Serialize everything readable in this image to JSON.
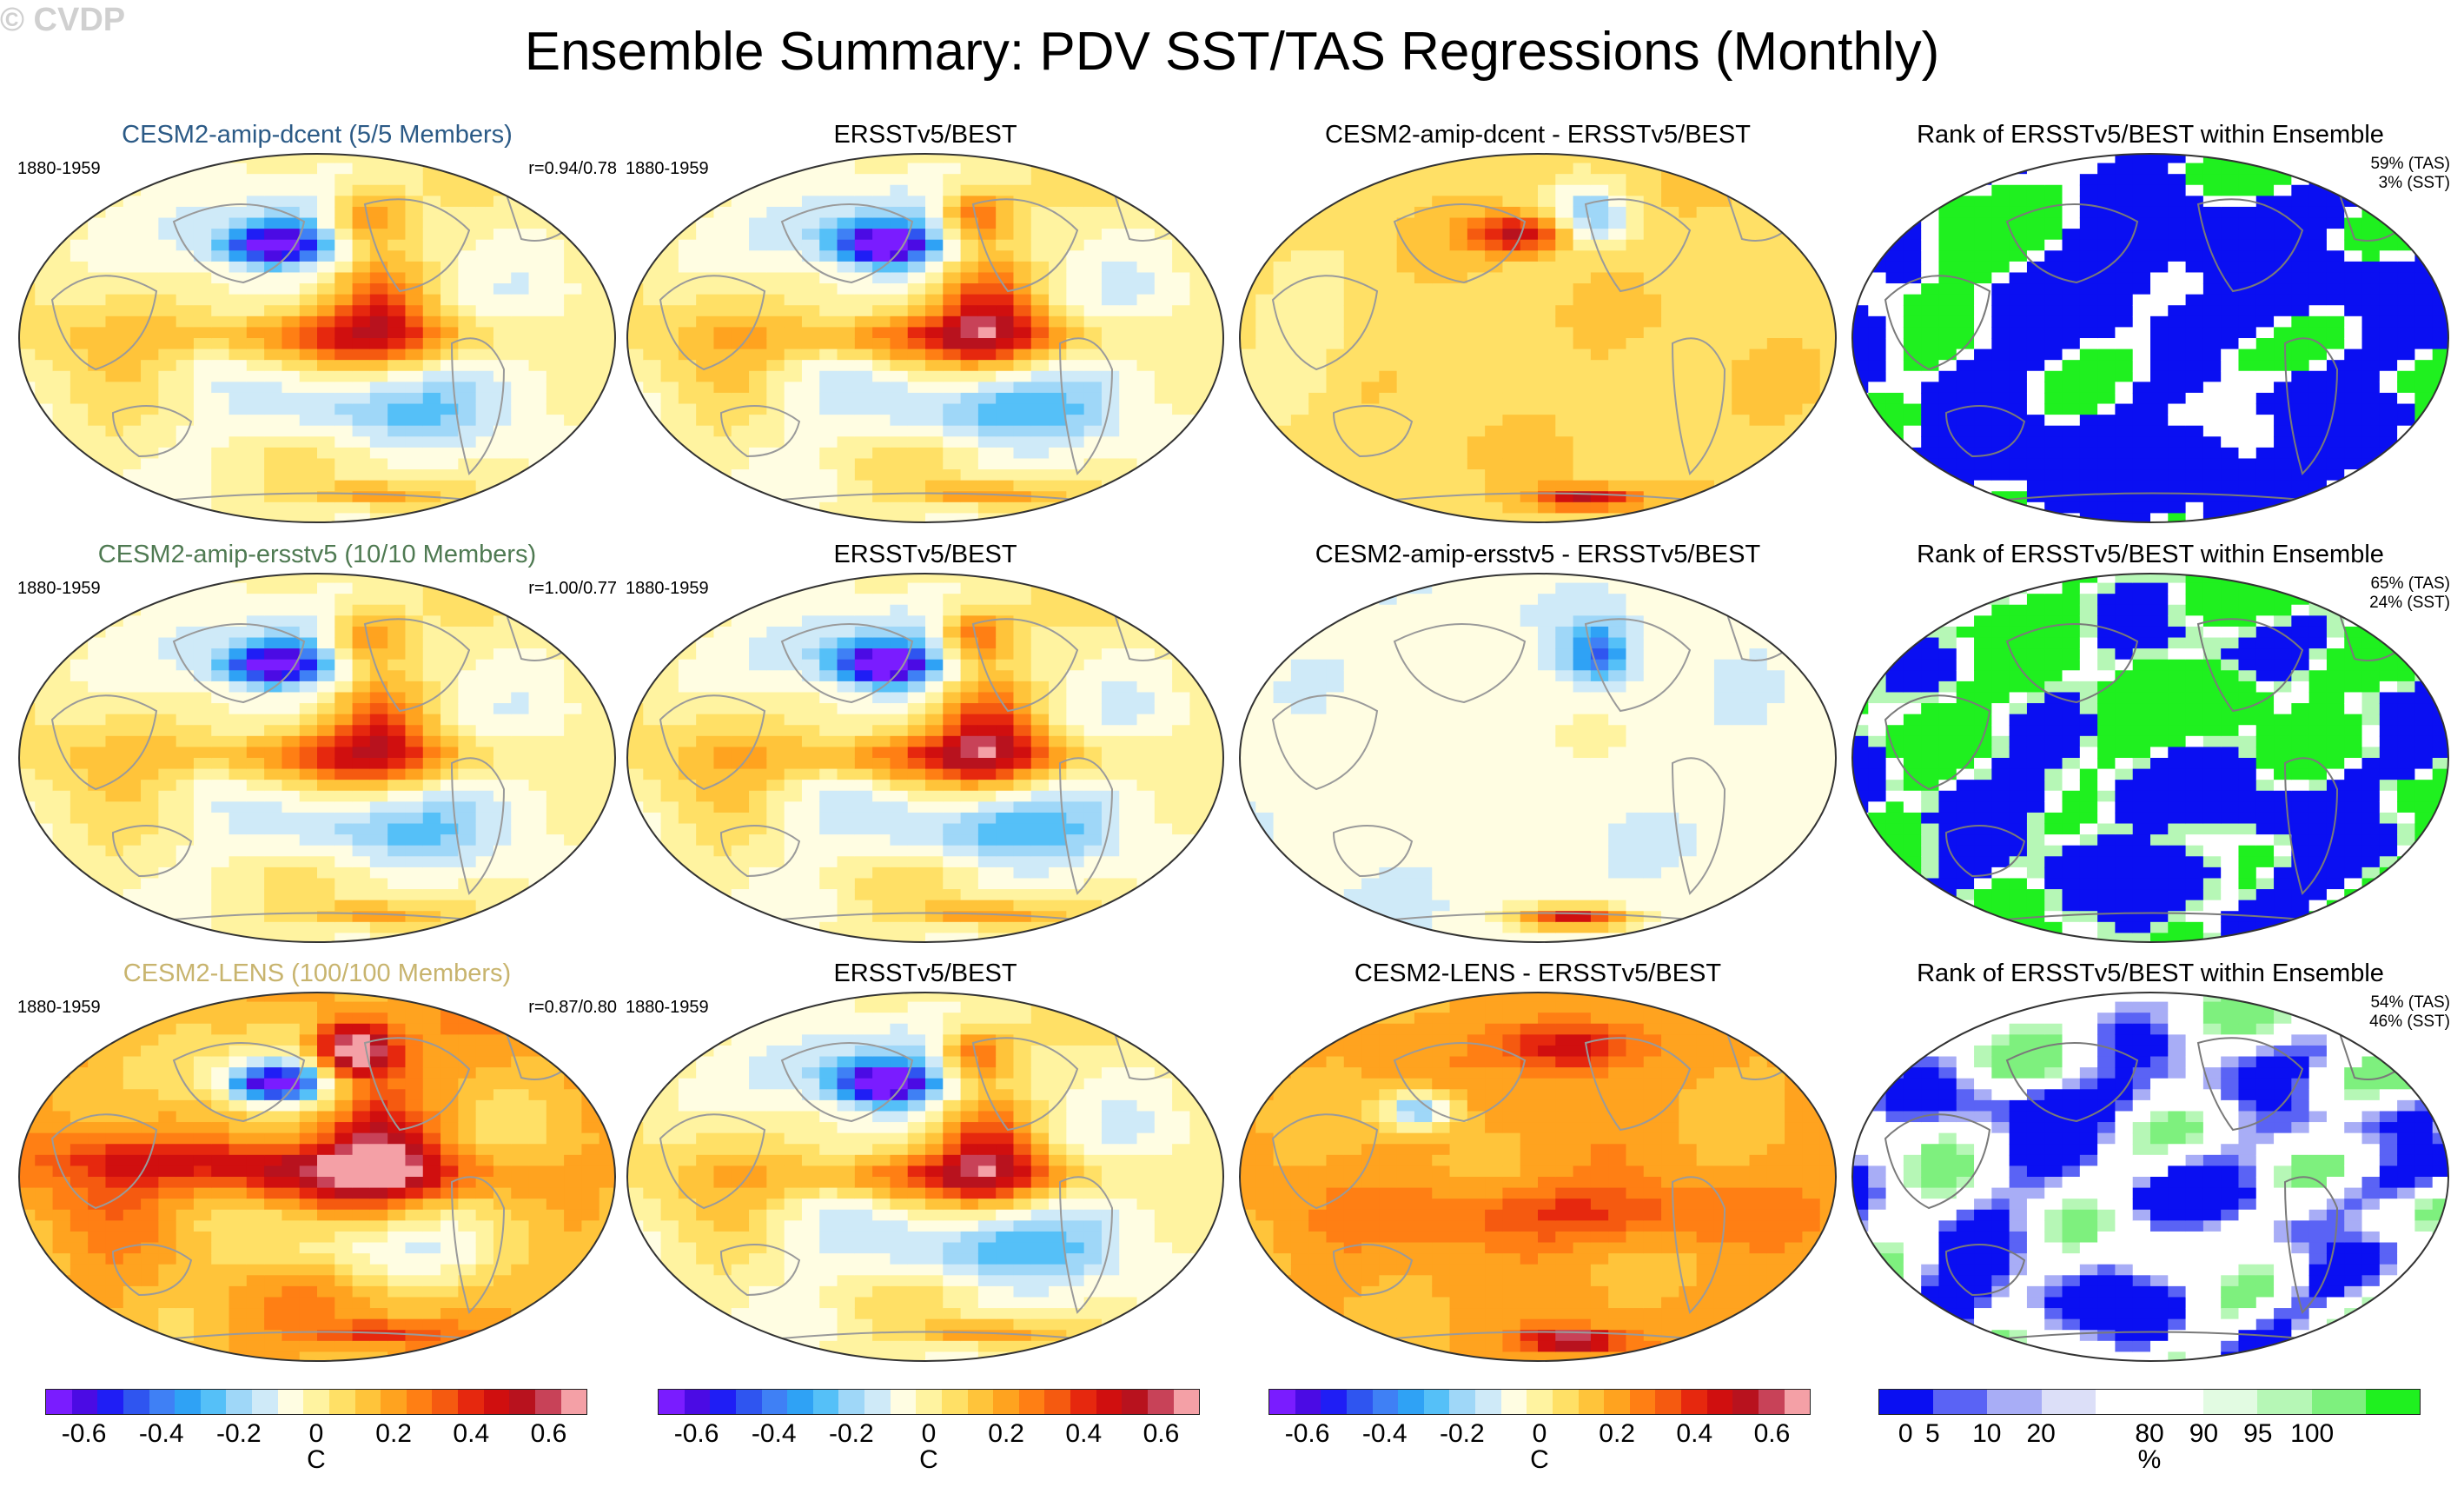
{
  "title": "Ensemble Summary: PDV SST/TAS Regressions (Monthly)",
  "watermark": "© CVDP",
  "colors": {
    "temp_scale": [
      "#7a1cff",
      "#4b0be4",
      "#1f1ef5",
      "#2f55f0",
      "#3f80f5",
      "#2fa2f5",
      "#55c0f8",
      "#9fd7f8",
      "#cfeaf8",
      "#fffde2",
      "#fff3a0",
      "#ffe066",
      "#ffc43a",
      "#ffa31f",
      "#ff7f14",
      "#f55a10",
      "#e6280e",
      "#d00f0f",
      "#b8121e",
      "#c84258",
      "#f4a0a6"
    ],
    "rank_scale": [
      "#0a0ff2",
      "#5a63f5",
      "#a8adf6",
      "#dcdff8",
      "#ffffff",
      "#ffffff",
      "#e2fbe2",
      "#b6f7b6",
      "#7ef07e",
      "#1ff01f"
    ]
  },
  "chart_data": [
    {
      "type": "heatmap",
      "row": 1,
      "col": 1,
      "title": "CESM2-amip-dcent (5/5 Members)",
      "title_color": "#2b5a86",
      "period": "1880-1959",
      "r": "r=0.94/0.78",
      "pattern": "ensemble",
      "units": "C",
      "range": [
        -0.7,
        0.7
      ]
    },
    {
      "type": "heatmap",
      "row": 1,
      "col": 2,
      "title": "ERSSTv5/BEST",
      "period": "1880-1959",
      "pattern": "obs",
      "units": "C",
      "range": [
        -0.7,
        0.7
      ]
    },
    {
      "type": "heatmap",
      "row": 1,
      "col": 3,
      "title": "CESM2-amip-dcent - ERSSTv5/BEST",
      "pattern": "diff1",
      "units": "C",
      "range": [
        -0.7,
        0.7
      ]
    },
    {
      "type": "heatmap",
      "row": 1,
      "col": 4,
      "title": "Rank of ERSSTv5/BEST within Ensemble",
      "pct_tas": "59% (TAS)",
      "pct_sst": "3% (SST)",
      "pattern": "rank1",
      "units": "%"
    },
    {
      "type": "heatmap",
      "row": 2,
      "col": 1,
      "title": "CESM2-amip-ersstv5 (10/10 Members)",
      "title_color": "#4f7a52",
      "period": "1880-1959",
      "r": "r=1.00/0.77",
      "pattern": "ensemble",
      "units": "C",
      "range": [
        -0.7,
        0.7
      ]
    },
    {
      "type": "heatmap",
      "row": 2,
      "col": 2,
      "title": "ERSSTv5/BEST",
      "period": "1880-1959",
      "pattern": "obs",
      "units": "C",
      "range": [
        -0.7,
        0.7
      ]
    },
    {
      "type": "heatmap",
      "row": 2,
      "col": 3,
      "title": "CESM2-amip-ersstv5 - ERSSTv5/BEST",
      "pattern": "diff2",
      "units": "C",
      "range": [
        -0.7,
        0.7
      ]
    },
    {
      "type": "heatmap",
      "row": 2,
      "col": 4,
      "title": "Rank of ERSSTv5/BEST within Ensemble",
      "pct_tas": "65% (TAS)",
      "pct_sst": "24% (SST)",
      "pattern": "rank2",
      "units": "%"
    },
    {
      "type": "heatmap",
      "row": 3,
      "col": 1,
      "title": "CESM2-LENS (100/100 Members)",
      "title_color": "#c8b46e",
      "period": "1880-1959",
      "r": "r=0.87/0.80",
      "pattern": "lens",
      "units": "C",
      "range": [
        -0.7,
        0.7
      ]
    },
    {
      "type": "heatmap",
      "row": 3,
      "col": 2,
      "title": "ERSSTv5/BEST",
      "period": "1880-1959",
      "pattern": "obs",
      "units": "C",
      "range": [
        -0.7,
        0.7
      ]
    },
    {
      "type": "heatmap",
      "row": 3,
      "col": 3,
      "title": "CESM2-LENS - ERSSTv5/BEST",
      "pattern": "diff3",
      "units": "C",
      "range": [
        -0.7,
        0.7
      ]
    },
    {
      "type": "heatmap",
      "row": 3,
      "col": 4,
      "title": "Rank of ERSSTv5/BEST within Ensemble",
      "pct_tas": "54% (TAS)",
      "pct_sst": "46% (SST)",
      "pattern": "rank3",
      "units": "%"
    }
  ],
  "legends": {
    "temp": {
      "ticks": [
        "-0.6",
        "-0.4",
        "-0.2",
        "0",
        "0.2",
        "0.4",
        "0.6"
      ],
      "tick_values": [
        -0.6,
        -0.4,
        -0.2,
        0,
        0.2,
        0.4,
        0.6
      ],
      "range": [
        -0.7,
        0.7
      ],
      "unit": "C"
    },
    "rank": {
      "ticks": [
        "0",
        "5",
        "10",
        "20",
        "80",
        "90",
        "95",
        "100"
      ],
      "tick_bins": [
        0.5,
        1,
        2,
        3,
        5,
        6,
        7,
        8
      ],
      "bins": 10,
      "unit": "%"
    }
  }
}
